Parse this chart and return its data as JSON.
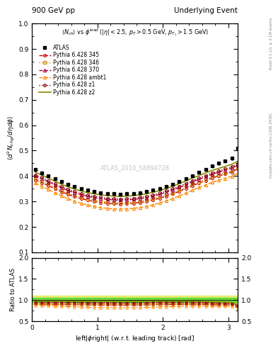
{
  "title_left": "900 GeV pp",
  "title_right": "Underlying Event",
  "ylabel_main": "$\\langle d^2 N_{chg}/d\\eta d\\phi \\rangle$",
  "ylabel_ratio": "Ratio to ATLAS",
  "xlabel": "left|$\\phi$right| (w.r.t. leading track) [rad]",
  "subtitle": "$\\langle N_{ch} \\rangle$ vs $\\phi^{lead}$ ($|\\eta| < 2.5$, $p_T > 0.5$ GeV, $p_{T_1} > 1.5$ GeV)",
  "watermark": "ATLAS_2010_S8894728",
  "right_label": "mcplots.cern.ch [arXiv:1306.3436]",
  "right_label2": "Rivet 3.1.10, ≥ 3.1M events",
  "ylim_main": [
    0.1,
    1.0
  ],
  "ylim_ratio": [
    0.5,
    2.0
  ],
  "xlim": [
    0,
    3.14159
  ],
  "x_ATLAS": [
    0.05,
    0.15,
    0.25,
    0.35,
    0.45,
    0.55,
    0.65,
    0.75,
    0.85,
    0.95,
    1.05,
    1.15,
    1.25,
    1.35,
    1.45,
    1.55,
    1.65,
    1.75,
    1.85,
    1.95,
    2.05,
    2.15,
    2.25,
    2.35,
    2.45,
    2.55,
    2.65,
    2.75,
    2.85,
    2.95,
    3.05,
    3.14
  ],
  "y_ATLAS": [
    0.425,
    0.413,
    0.402,
    0.39,
    0.378,
    0.367,
    0.358,
    0.35,
    0.344,
    0.339,
    0.335,
    0.332,
    0.33,
    0.329,
    0.33,
    0.332,
    0.335,
    0.339,
    0.344,
    0.351,
    0.359,
    0.368,
    0.378,
    0.39,
    0.402,
    0.414,
    0.427,
    0.439,
    0.45,
    0.46,
    0.47,
    0.51
  ],
  "y_err_ATLAS": [
    0.006,
    0.006,
    0.005,
    0.005,
    0.005,
    0.005,
    0.005,
    0.005,
    0.005,
    0.004,
    0.004,
    0.004,
    0.004,
    0.004,
    0.004,
    0.004,
    0.004,
    0.004,
    0.004,
    0.004,
    0.004,
    0.005,
    0.005,
    0.005,
    0.005,
    0.005,
    0.005,
    0.006,
    0.006,
    0.006,
    0.007,
    0.01
  ],
  "x_pythia": [
    0.05,
    0.15,
    0.25,
    0.35,
    0.45,
    0.55,
    0.65,
    0.75,
    0.85,
    0.95,
    1.05,
    1.15,
    1.25,
    1.35,
    1.45,
    1.55,
    1.65,
    1.75,
    1.85,
    1.95,
    2.05,
    2.15,
    2.25,
    2.35,
    2.45,
    2.55,
    2.65,
    2.75,
    2.85,
    2.95,
    3.05,
    3.14
  ],
  "y_345": [
    0.385,
    0.374,
    0.362,
    0.35,
    0.338,
    0.328,
    0.319,
    0.311,
    0.305,
    0.3,
    0.296,
    0.293,
    0.291,
    0.29,
    0.291,
    0.293,
    0.296,
    0.3,
    0.306,
    0.313,
    0.321,
    0.33,
    0.34,
    0.351,
    0.362,
    0.372,
    0.382,
    0.392,
    0.4,
    0.408,
    0.416,
    0.428
  ],
  "y_346": [
    0.39,
    0.379,
    0.367,
    0.355,
    0.343,
    0.333,
    0.324,
    0.316,
    0.31,
    0.305,
    0.301,
    0.298,
    0.296,
    0.295,
    0.296,
    0.298,
    0.301,
    0.305,
    0.311,
    0.318,
    0.326,
    0.335,
    0.345,
    0.356,
    0.367,
    0.377,
    0.387,
    0.397,
    0.405,
    0.413,
    0.421,
    0.433
  ],
  "y_370": [
    0.4,
    0.389,
    0.377,
    0.365,
    0.353,
    0.343,
    0.334,
    0.326,
    0.32,
    0.315,
    0.311,
    0.308,
    0.306,
    0.305,
    0.306,
    0.308,
    0.311,
    0.315,
    0.321,
    0.328,
    0.336,
    0.345,
    0.355,
    0.366,
    0.377,
    0.387,
    0.397,
    0.407,
    0.415,
    0.423,
    0.431,
    0.443
  ],
  "y_ambt1": [
    0.372,
    0.36,
    0.347,
    0.335,
    0.322,
    0.311,
    0.301,
    0.293,
    0.286,
    0.28,
    0.276,
    0.273,
    0.271,
    0.27,
    0.271,
    0.273,
    0.276,
    0.281,
    0.287,
    0.294,
    0.302,
    0.312,
    0.322,
    0.333,
    0.344,
    0.355,
    0.365,
    0.375,
    0.383,
    0.391,
    0.399,
    0.412
  ],
  "y_z1": [
    0.405,
    0.394,
    0.382,
    0.37,
    0.358,
    0.348,
    0.339,
    0.331,
    0.325,
    0.32,
    0.316,
    0.313,
    0.311,
    0.31,
    0.311,
    0.313,
    0.316,
    0.32,
    0.326,
    0.333,
    0.341,
    0.35,
    0.36,
    0.371,
    0.382,
    0.392,
    0.402,
    0.412,
    0.42,
    0.428,
    0.436,
    0.448
  ],
  "y_z2": [
    0.415,
    0.404,
    0.392,
    0.38,
    0.368,
    0.358,
    0.349,
    0.341,
    0.335,
    0.33,
    0.326,
    0.323,
    0.321,
    0.32,
    0.321,
    0.323,
    0.326,
    0.33,
    0.336,
    0.343,
    0.351,
    0.36,
    0.37,
    0.381,
    0.392,
    0.402,
    0.412,
    0.422,
    0.43,
    0.438,
    0.446,
    0.458
  ],
  "color_345": "#cc0000",
  "color_346": "#cc8800",
  "color_370": "#aa0044",
  "color_ambt1": "#ff8800",
  "color_z1": "#880000",
  "color_z2": "#888800",
  "color_ATLAS": "#000000",
  "green_band_upper": 1.05,
  "green_band_lower": 0.95,
  "yellow_band_upper": 1.1,
  "yellow_band_lower": 0.9
}
